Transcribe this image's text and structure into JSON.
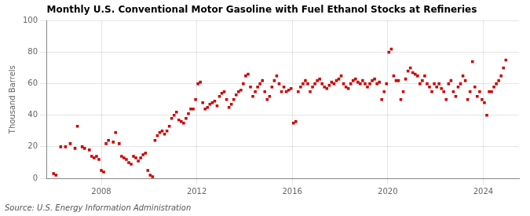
{
  "chart_data": {
    "type": "scatter",
    "title": "Monthly U.S. Conventional Motor Gasoline with Fuel Ethanol Stocks at Refineries",
    "ylabel": "Thousand Barrels",
    "annotations": [
      "Source: U.S. Energy Information Administration"
    ],
    "color": "#cc0000",
    "marker": "square",
    "grid": true,
    "xlim": [
      2005.7,
      2025.5
    ],
    "xticks": [
      2008,
      2012,
      2016,
      2020,
      2024
    ],
    "ylim": [
      0,
      100
    ],
    "yticks": [
      0,
      20,
      40,
      60,
      80,
      100
    ],
    "x": [
      2006.0,
      2006.1,
      2006.3,
      2006.5,
      2006.7,
      2006.9,
      2007.0,
      2007.2,
      2007.3,
      2007.5,
      2007.6,
      2007.7,
      2007.8,
      2007.9,
      2008.0,
      2008.1,
      2008.2,
      2008.3,
      2008.5,
      2008.6,
      2008.75,
      2008.85,
      2008.95,
      2009.05,
      2009.15,
      2009.25,
      2009.35,
      2009.45,
      2009.55,
      2009.65,
      2009.75,
      2009.85,
      2009.95,
      2010.05,
      2010.15,
      2010.25,
      2010.35,
      2010.45,
      2010.55,
      2010.65,
      2010.75,
      2010.85,
      2010.95,
      2011.05,
      2011.15,
      2011.25,
      2011.35,
      2011.45,
      2011.55,
      2011.65,
      2011.75,
      2011.85,
      2011.95,
      2012.05,
      2012.15,
      2012.25,
      2012.35,
      2012.45,
      2012.55,
      2012.65,
      2012.75,
      2012.85,
      2012.95,
      2013.05,
      2013.15,
      2013.25,
      2013.35,
      2013.45,
      2013.55,
      2013.65,
      2013.75,
      2013.85,
      2013.95,
      2014.05,
      2014.15,
      2014.25,
      2014.35,
      2014.45,
      2014.55,
      2014.65,
      2014.75,
      2014.85,
      2014.95,
      2015.05,
      2015.15,
      2015.25,
      2015.35,
      2015.45,
      2015.55,
      2015.65,
      2015.75,
      2015.85,
      2015.95,
      2016.05,
      2016.15,
      2016.25,
      2016.35,
      2016.45,
      2016.55,
      2016.65,
      2016.75,
      2016.85,
      2016.95,
      2017.05,
      2017.15,
      2017.25,
      2017.35,
      2017.45,
      2017.55,
      2017.65,
      2017.75,
      2017.85,
      2017.95,
      2018.05,
      2018.15,
      2018.25,
      2018.35,
      2018.45,
      2018.55,
      2018.65,
      2018.75,
      2018.85,
      2018.95,
      2019.05,
      2019.15,
      2019.25,
      2019.35,
      2019.45,
      2019.55,
      2019.65,
      2019.75,
      2019.85,
      2019.95,
      2020.05,
      2020.15,
      2020.25,
      2020.35,
      2020.45,
      2020.55,
      2020.65,
      2020.75,
      2020.85,
      2020.95,
      2021.05,
      2021.15,
      2021.25,
      2021.35,
      2021.45,
      2021.55,
      2021.65,
      2021.75,
      2021.85,
      2021.95,
      2022.05,
      2022.15,
      2022.25,
      2022.35,
      2022.45,
      2022.55,
      2022.65,
      2022.75,
      2022.85,
      2022.95,
      2023.05,
      2023.15,
      2023.25,
      2023.35,
      2023.45,
      2023.55,
      2023.65,
      2023.75,
      2023.85,
      2023.95,
      2024.05,
      2024.15,
      2024.25,
      2024.35,
      2024.45,
      2024.55,
      2024.65,
      2024.75,
      2024.85,
      2024.95
    ],
    "values": [
      3,
      2,
      20,
      20,
      22,
      19,
      33,
      20,
      19,
      18,
      14,
      13,
      14,
      12,
      5,
      4,
      22,
      24,
      23,
      29,
      22,
      14,
      13,
      12,
      10,
      9,
      14,
      13,
      11,
      13,
      15,
      16,
      5,
      2,
      1,
      24,
      27,
      29,
      30,
      28,
      30,
      33,
      38,
      40,
      42,
      37,
      36,
      35,
      38,
      41,
      44,
      44,
      50,
      60,
      61,
      48,
      44,
      45,
      47,
      48,
      49,
      46,
      52,
      54,
      55,
      50,
      45,
      47,
      50,
      53,
      55,
      56,
      60,
      65,
      66,
      58,
      52,
      55,
      58,
      60,
      62,
      55,
      50,
      52,
      58,
      62,
      65,
      60,
      55,
      58,
      55,
      56,
      57,
      35,
      36,
      55,
      58,
      60,
      62,
      60,
      55,
      58,
      60,
      62,
      63,
      60,
      58,
      57,
      59,
      61,
      60,
      62,
      63,
      65,
      60,
      58,
      57,
      60,
      62,
      63,
      61,
      60,
      62,
      60,
      58,
      60,
      62,
      63,
      60,
      61,
      50,
      55,
      60,
      80,
      82,
      65,
      62,
      62,
      50,
      55,
      63,
      68,
      70,
      67,
      66,
      65,
      60,
      62,
      65,
      60,
      58,
      55,
      60,
      58,
      60,
      57,
      55,
      50,
      60,
      62,
      55,
      52,
      58,
      60,
      65,
      62,
      50,
      55,
      74,
      58,
      52,
      55,
      50,
      48,
      40,
      55,
      55,
      58,
      60,
      62,
      65,
      70,
      75
    ]
  }
}
